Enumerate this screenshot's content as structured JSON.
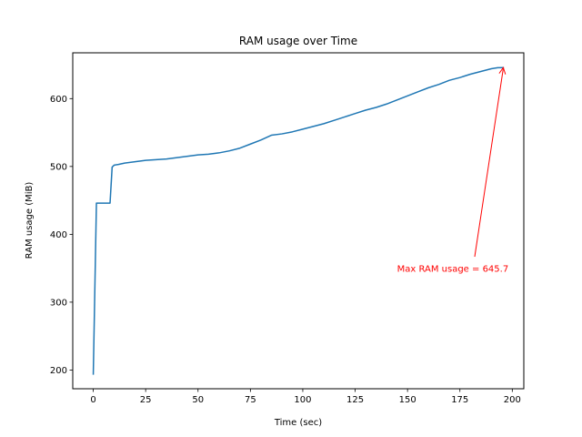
{
  "chart_data": {
    "type": "line",
    "title": "RAM usage over Time",
    "xlabel": "Time (sec)",
    "ylabel": "RAM usage (MiB)",
    "xlim": [
      -9.8,
      205.5
    ],
    "ylim": [
      172.4,
      667.5
    ],
    "x_ticks": [
      0,
      25,
      50,
      75,
      100,
      125,
      150,
      175,
      200
    ],
    "y_ticks": [
      200,
      300,
      400,
      500,
      600
    ],
    "grid": false,
    "legend": "none",
    "series": [
      {
        "color": "#1f77b4",
        "x": [
          0,
          1.5,
          2,
          8,
          9,
          10,
          12,
          15,
          20,
          25,
          30,
          35,
          40,
          45,
          50,
          55,
          60,
          65,
          70,
          75,
          80,
          85,
          90,
          95,
          100,
          105,
          110,
          115,
          120,
          125,
          130,
          135,
          140,
          145,
          150,
          155,
          160,
          165,
          170,
          175,
          180,
          185,
          190,
          193,
          195.7
        ],
        "y": [
          194,
          446,
          446,
          446,
          499,
          502,
          503,
          505,
          507,
          509,
          510,
          511,
          513,
          515,
          517,
          518,
          520,
          523,
          527,
          533,
          539,
          546,
          548,
          551,
          555,
          559,
          563,
          568,
          573,
          578,
          583,
          587,
          592,
          598,
          604,
          610,
          616,
          621,
          627,
          631,
          636,
          640,
          644,
          645.5,
          645.7
        ]
      }
    ],
    "annotation": {
      "text": "Max RAM usage = 645.7",
      "color": "#ff0000",
      "point": [
        195.7,
        645.7
      ],
      "text_pos": [
        145,
        345
      ]
    }
  }
}
